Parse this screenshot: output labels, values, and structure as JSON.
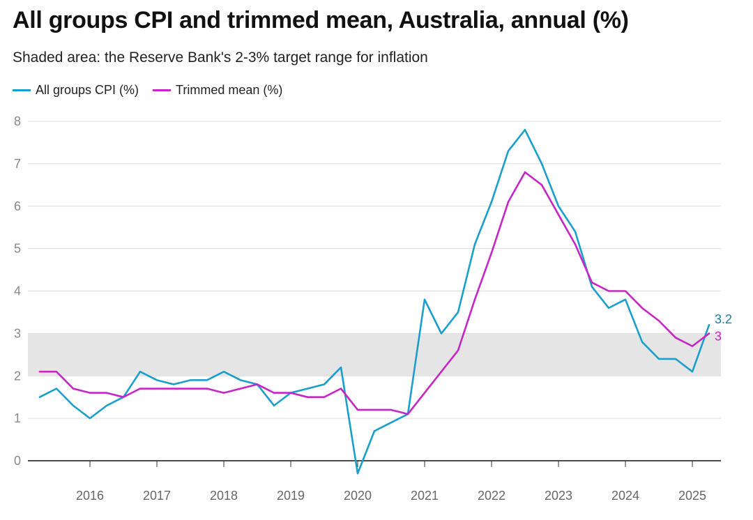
{
  "header": {
    "title": "All groups CPI and trimmed mean, Australia, annual (%)",
    "subtitle": "Shaded area: the Reserve Bank's 2-3% target range for inflation"
  },
  "legend": {
    "items": [
      {
        "label": "All groups CPI (%)",
        "color": "#1a9fcc"
      },
      {
        "label": "Trimmed mean (%)",
        "color": "#c526c5"
      }
    ]
  },
  "chart_data": {
    "type": "line",
    "title": "All groups CPI and trimmed mean, Australia, annual (%)",
    "subtitle": "Shaded area: the Reserve Bank's 2-3% target range for inflation",
    "xlabel": "",
    "ylabel": "",
    "ylim": [
      0,
      8
    ],
    "yticks": [
      0,
      1,
      2,
      3,
      4,
      5,
      6,
      7,
      8
    ],
    "xticks": [
      "2016",
      "2017",
      "2018",
      "2019",
      "2020",
      "2021",
      "2022",
      "2023",
      "2024",
      "2025"
    ],
    "grid": true,
    "legend_position": "top-left",
    "target_band": {
      "low": 2,
      "high": 3,
      "color": "#e5e5e5"
    },
    "x": [
      "Sep 2015",
      "Dec 2015",
      "Mar 2016",
      "Jun 2016",
      "Sep 2016",
      "Dec 2016",
      "Mar 2017",
      "Jun 2017",
      "Sep 2017",
      "Dec 2017",
      "Mar 2018",
      "Jun 2018",
      "Sep 2018",
      "Dec 2018",
      "Mar 2019",
      "Jun 2019",
      "Sep 2019",
      "Dec 2019",
      "Mar 2020",
      "Jun 2020",
      "Sep 2020",
      "Dec 2020",
      "Mar 2021",
      "Jun 2021",
      "Sep 2021",
      "Dec 2021",
      "Mar 2022",
      "Jun 2022",
      "Sep 2022",
      "Dec 2022",
      "Mar 2023",
      "Jun 2023",
      "Sep 2023",
      "Dec 2023",
      "Mar 2024",
      "Jun 2024",
      "Sep 2024",
      "Dec 2024",
      "Mar 2025",
      "Jun 2025",
      "Sep 2025"
    ],
    "series": [
      {
        "name": "All groups CPI (%)",
        "color": "#1a9fcc",
        "end_label": "3.2",
        "end_label_color": "#1a7fa3",
        "values": [
          1.5,
          1.7,
          1.3,
          1.0,
          1.3,
          1.5,
          2.1,
          1.9,
          1.8,
          1.9,
          1.9,
          2.1,
          1.9,
          1.8,
          1.3,
          1.6,
          1.7,
          1.8,
          2.2,
          -0.3,
          0.7,
          0.9,
          1.1,
          3.8,
          3.0,
          3.5,
          5.1,
          6.1,
          7.3,
          7.8,
          7.0,
          6.0,
          5.4,
          4.1,
          3.6,
          3.8,
          2.8,
          2.4,
          2.4,
          2.1,
          3.2
        ]
      },
      {
        "name": "Trimmed mean (%)",
        "color": "#c526c5",
        "end_label": "3",
        "end_label_color": "#c526c5",
        "values": [
          2.1,
          2.1,
          1.7,
          1.6,
          1.6,
          1.5,
          1.7,
          1.7,
          1.7,
          1.7,
          1.7,
          1.6,
          1.7,
          1.8,
          1.6,
          1.6,
          1.5,
          1.5,
          1.7,
          1.2,
          1.2,
          1.2,
          1.1,
          1.6,
          2.1,
          2.6,
          3.8,
          4.9,
          6.1,
          6.8,
          6.5,
          5.8,
          5.1,
          4.2,
          4.0,
          4.0,
          3.6,
          3.3,
          2.9,
          2.7,
          3.0
        ]
      }
    ]
  }
}
